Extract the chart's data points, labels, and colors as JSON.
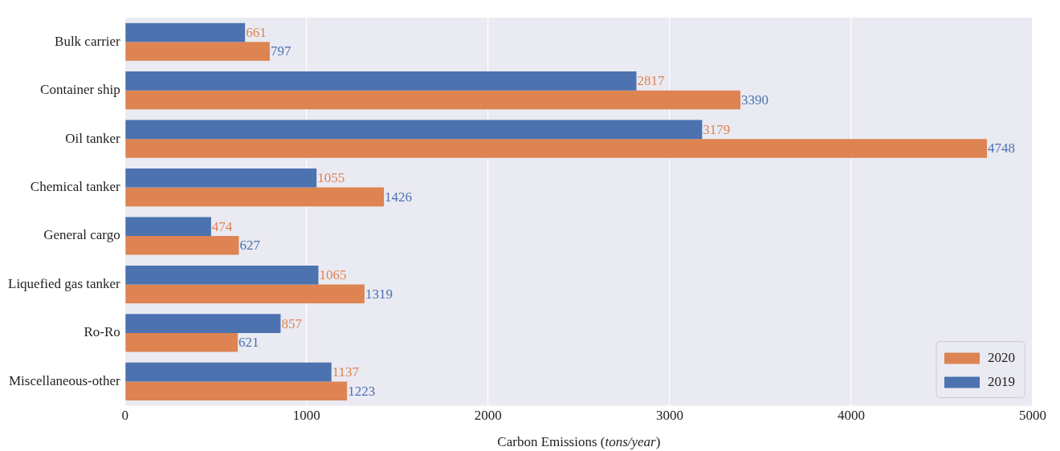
{
  "chart_data": {
    "type": "bar",
    "orientation": "horizontal",
    "xlabel": "Carbon Emissions (tons/year)",
    "categories": [
      "Bulk carrier",
      "Container ship",
      "Oil tanker",
      "Chemical tanker",
      "General cargo",
      "Liquefied gas tanker",
      "Ro-Ro",
      "Miscellaneous-other"
    ],
    "series": [
      {
        "name": "2019",
        "color": "#4c72b0",
        "values": [
          661,
          2817,
          3179,
          1055,
          474,
          1065,
          857,
          1137
        ]
      },
      {
        "name": "2020",
        "color": "#dd8452",
        "values": [
          797,
          3390,
          4748,
          1426,
          627,
          1319,
          621,
          1223
        ]
      }
    ],
    "xlim": [
      0,
      5000
    ],
    "xticks": [
      0,
      1000,
      2000,
      3000,
      4000,
      5000
    ],
    "grid": "x",
    "legend": "bottom right",
    "data_labels": true
  }
}
